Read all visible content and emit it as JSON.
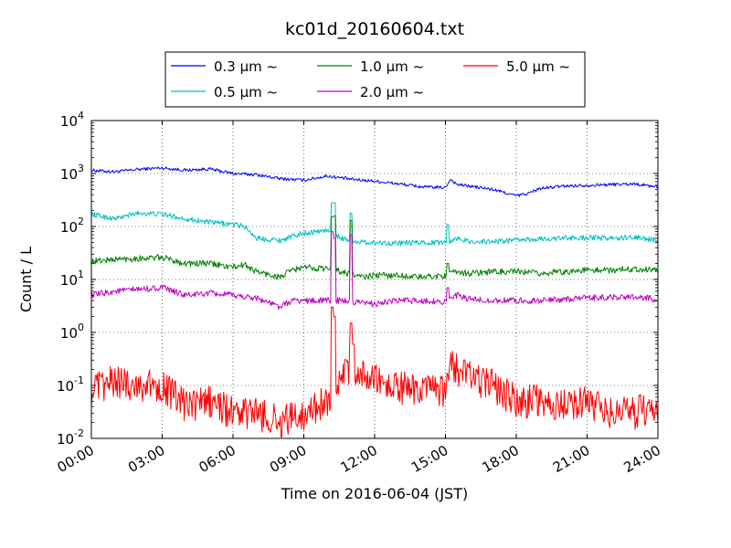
{
  "chart_data": {
    "type": "line",
    "title": "kc01d_20160604.txt",
    "xlabel": "Time on 2016-06-04 (JST)",
    "ylabel": "Count / L",
    "x_ticks": [
      "00:00",
      "03:00",
      "06:00",
      "09:00",
      "12:00",
      "15:00",
      "18:00",
      "21:00",
      "24:00"
    ],
    "x_range_hours": [
      0,
      24
    ],
    "y_scale": "log",
    "ylim": [
      0.01,
      10000
    ],
    "y_ticks": [
      {
        "base": "10",
        "exp": "-2"
      },
      {
        "base": "10",
        "exp": "-1"
      },
      {
        "base": "10",
        "exp": "0"
      },
      {
        "base": "10",
        "exp": "1"
      },
      {
        "base": "10",
        "exp": "2"
      },
      {
        "base": "10",
        "exp": "3"
      },
      {
        "base": "10",
        "exp": "4"
      }
    ],
    "grid": true,
    "legend_position": "top-center",
    "series": [
      {
        "name": "0.3 μm ~",
        "color": "#0000ff",
        "noise": 0.03,
        "spikes": [],
        "points": [
          [
            0,
            1150
          ],
          [
            1,
            1080
          ],
          [
            2,
            1200
          ],
          [
            3,
            1280
          ],
          [
            4,
            1150
          ],
          [
            5,
            1220
          ],
          [
            6,
            1000
          ],
          [
            7,
            950
          ],
          [
            8,
            800
          ],
          [
            9,
            750
          ],
          [
            10,
            900
          ],
          [
            11,
            780
          ],
          [
            12,
            720
          ],
          [
            13,
            640
          ],
          [
            14,
            560
          ],
          [
            15,
            540
          ],
          [
            15.2,
            780
          ],
          [
            15.5,
            620
          ],
          [
            16,
            580
          ],
          [
            17,
            500
          ],
          [
            18,
            380
          ],
          [
            18.5,
            420
          ],
          [
            19,
            520
          ],
          [
            20,
            580
          ],
          [
            21,
            600
          ],
          [
            22,
            620
          ],
          [
            23,
            640
          ],
          [
            24,
            560
          ]
        ]
      },
      {
        "name": "0.5 μm ~",
        "color": "#00c0c0",
        "noise": 0.05,
        "spikes": [
          [
            10.2,
            280
          ],
          [
            10.3,
            280
          ],
          [
            11.0,
            180
          ],
          [
            15.1,
            110
          ]
        ],
        "points": [
          [
            0,
            170
          ],
          [
            1,
            140
          ],
          [
            2,
            180
          ],
          [
            3,
            170
          ],
          [
            4,
            140
          ],
          [
            5,
            120
          ],
          [
            6,
            110
          ],
          [
            6.5,
            100
          ],
          [
            7,
            60
          ],
          [
            8,
            55
          ],
          [
            9,
            75
          ],
          [
            10,
            85
          ],
          [
            10.6,
            60
          ],
          [
            11.5,
            50
          ],
          [
            12,
            50
          ],
          [
            13,
            48
          ],
          [
            14,
            50
          ],
          [
            15,
            50
          ],
          [
            15.5,
            60
          ],
          [
            16,
            52
          ],
          [
            17,
            52
          ],
          [
            18,
            55
          ],
          [
            19,
            58
          ],
          [
            20,
            60
          ],
          [
            21,
            62
          ],
          [
            22,
            60
          ],
          [
            23,
            62
          ],
          [
            24,
            55
          ]
        ]
      },
      {
        "name": "1.0 μm ~",
        "color": "#008000",
        "noise": 0.06,
        "spikes": [
          [
            10.2,
            150
          ],
          [
            10.3,
            160
          ],
          [
            11.0,
            130
          ],
          [
            15.1,
            20
          ]
        ],
        "points": [
          [
            0,
            22
          ],
          [
            1,
            24
          ],
          [
            2,
            25
          ],
          [
            3,
            26
          ],
          [
            4,
            20
          ],
          [
            5,
            20
          ],
          [
            6,
            17
          ],
          [
            6.5,
            19
          ],
          [
            7,
            14
          ],
          [
            8,
            11
          ],
          [
            8.5,
            15
          ],
          [
            9,
            17
          ],
          [
            10,
            16
          ],
          [
            10.6,
            14
          ],
          [
            11.5,
            11
          ],
          [
            12,
            12
          ],
          [
            13,
            12
          ],
          [
            14,
            11
          ],
          [
            15,
            12
          ],
          [
            15.5,
            14
          ],
          [
            16,
            13
          ],
          [
            17,
            14
          ],
          [
            18,
            14
          ],
          [
            19,
            13
          ],
          [
            20,
            14
          ],
          [
            21,
            15
          ],
          [
            22,
            15
          ],
          [
            23,
            16
          ],
          [
            24,
            15
          ]
        ]
      },
      {
        "name": "2.0 μm ~",
        "color": "#c000c0",
        "noise": 0.06,
        "spikes": [
          [
            10.2,
            80
          ],
          [
            10.3,
            60
          ],
          [
            11.0,
            70
          ],
          [
            15.1,
            7
          ]
        ],
        "points": [
          [
            0,
            5
          ],
          [
            1,
            6
          ],
          [
            2,
            6.5
          ],
          [
            3,
            7
          ],
          [
            4,
            5
          ],
          [
            5,
            5.5
          ],
          [
            6,
            5
          ],
          [
            7,
            4.5
          ],
          [
            8,
            3
          ],
          [
            8.5,
            4
          ],
          [
            9,
            4
          ],
          [
            10,
            4
          ],
          [
            10.6,
            4
          ],
          [
            11.5,
            3.5
          ],
          [
            12,
            3.5
          ],
          [
            13,
            4
          ],
          [
            14,
            4
          ],
          [
            15,
            3.8
          ],
          [
            15.5,
            5
          ],
          [
            16,
            4.2
          ],
          [
            17,
            4
          ],
          [
            18,
            4
          ],
          [
            19,
            4
          ],
          [
            20,
            4.2
          ],
          [
            21,
            4.5
          ],
          [
            22,
            4.6
          ],
          [
            23,
            4.8
          ],
          [
            24,
            4.2
          ]
        ]
      },
      {
        "name": "5.0 μm ~",
        "color": "#ff0000",
        "noise": 0.32,
        "spikes": [
          [
            10.2,
            3
          ],
          [
            10.3,
            2
          ],
          [
            11.0,
            1.5
          ],
          [
            11.1,
            0.6
          ]
        ],
        "points": [
          [
            0,
            0.08
          ],
          [
            1,
            0.12
          ],
          [
            2,
            0.1
          ],
          [
            3,
            0.1
          ],
          [
            4,
            0.04
          ],
          [
            5,
            0.05
          ],
          [
            6,
            0.03
          ],
          [
            7,
            0.03
          ],
          [
            8,
            0.02
          ],
          [
            9,
            0.03
          ],
          [
            10,
            0.05
          ],
          [
            10.6,
            0.15
          ],
          [
            11,
            0.2
          ],
          [
            12,
            0.12
          ],
          [
            13,
            0.09
          ],
          [
            14,
            0.08
          ],
          [
            15,
            0.07
          ],
          [
            15.2,
            0.25
          ],
          [
            15.5,
            0.2
          ],
          [
            16,
            0.15
          ],
          [
            17,
            0.1
          ],
          [
            18,
            0.05
          ],
          [
            19,
            0.05
          ],
          [
            20,
            0.04
          ],
          [
            21,
            0.05
          ],
          [
            22,
            0.03
          ],
          [
            23,
            0.03
          ],
          [
            24,
            0.04
          ]
        ]
      }
    ]
  }
}
